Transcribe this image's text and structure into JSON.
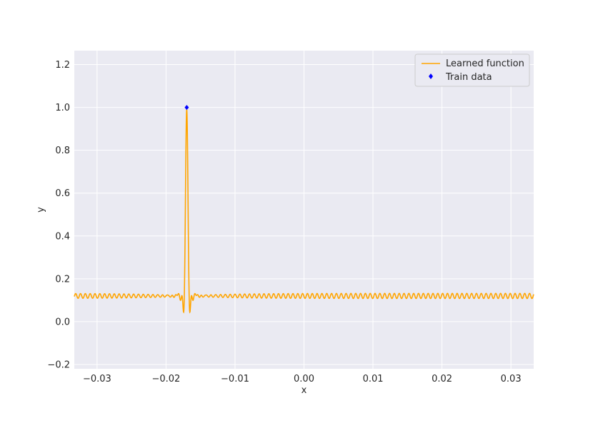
{
  "chart_data": {
    "type": "line",
    "xlabel": "x",
    "ylabel": "y",
    "xlim": [
      -0.0333,
      0.0333
    ],
    "ylim": [
      -0.22,
      1.265
    ],
    "x_ticks": [
      -0.03,
      -0.02,
      -0.01,
      0.0,
      0.01,
      0.02,
      0.03
    ],
    "x_tick_labels": [
      "−0.03",
      "−0.02",
      "−0.01",
      "0.00",
      "0.01",
      "0.02",
      "0.03"
    ],
    "y_ticks": [
      -0.2,
      0.0,
      0.2,
      0.4,
      0.6,
      0.8,
      1.0,
      1.2
    ],
    "y_tick_labels": [
      "−0.2",
      "0.0",
      "0.2",
      "0.4",
      "0.6",
      "0.8",
      "1.0",
      "1.2"
    ],
    "grid": true,
    "legend_position": "top-right",
    "series": [
      {
        "name": "Learned function",
        "kind": "line",
        "color": "#ffa500",
        "function": {
          "baseline": 0.12,
          "peak_x": -0.017,
          "peak_y": 0.99,
          "oscillation_period": 0.0007,
          "far_oscillation_amplitude": 0.012
        }
      },
      {
        "name": "Train data",
        "kind": "scatter",
        "color": "#0000ff",
        "marker": "diamond",
        "points": [
          {
            "x": -0.017,
            "y": 1.0
          }
        ]
      }
    ]
  }
}
